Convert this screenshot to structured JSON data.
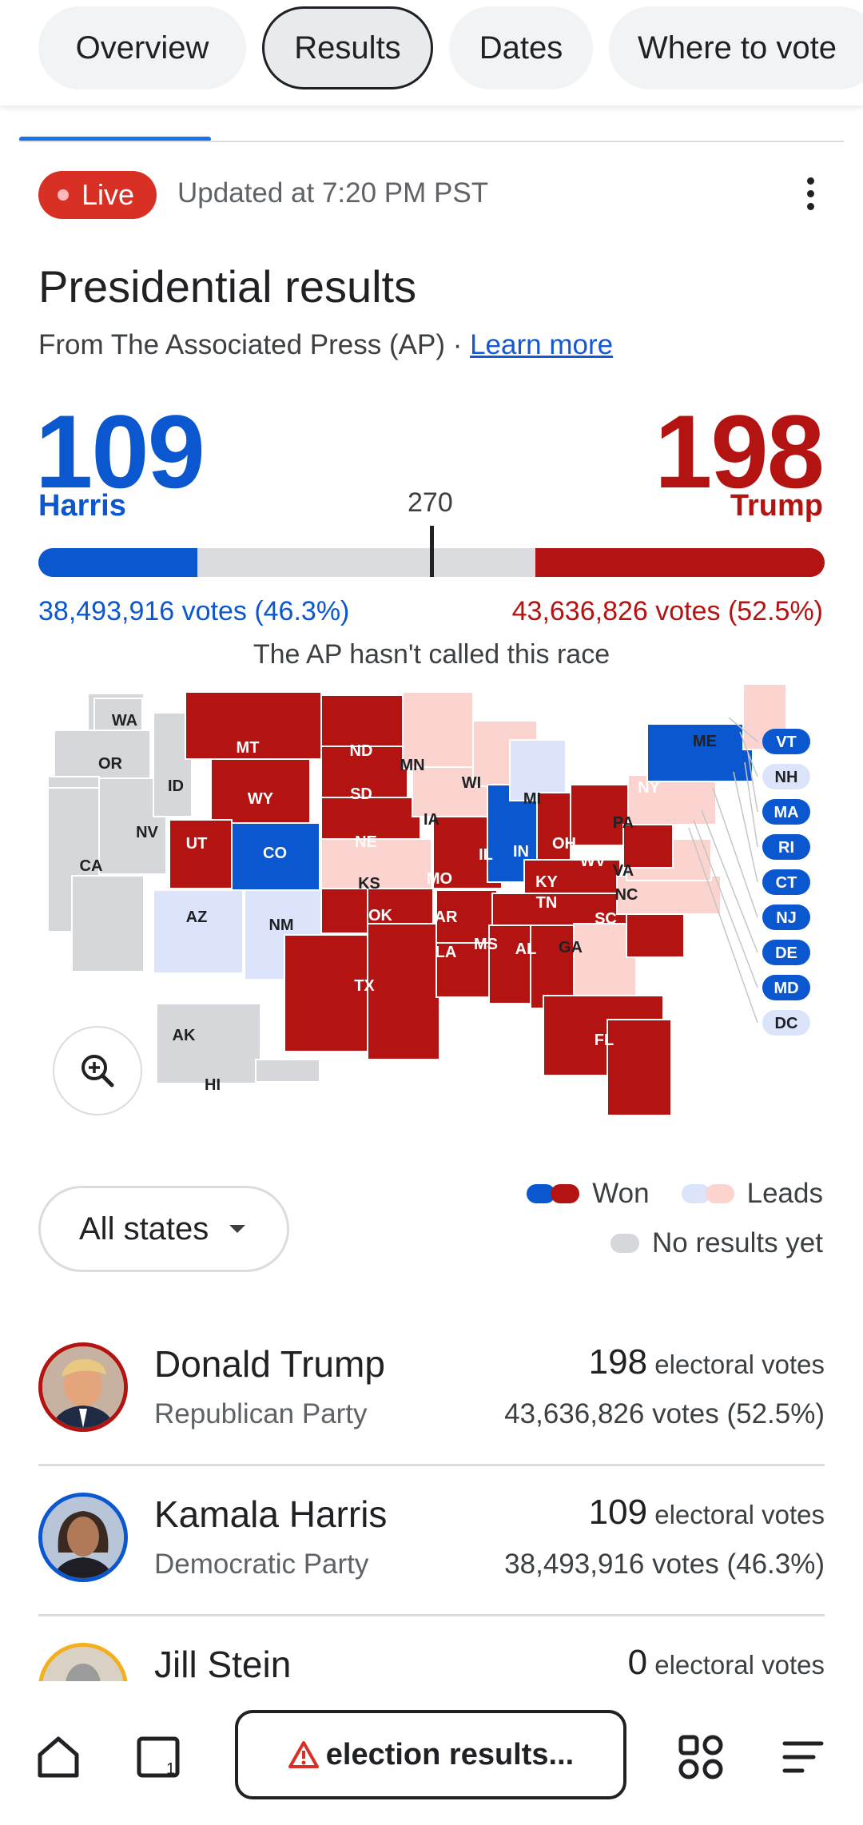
{
  "tabs": [
    {
      "label": "Overview",
      "active": false
    },
    {
      "label": "Results",
      "active": true
    },
    {
      "label": "Dates",
      "active": false
    },
    {
      "label": "Where to vote",
      "active": false
    }
  ],
  "status": {
    "live_label": "Live",
    "updated": "Updated at 7:20 PM PST"
  },
  "header": {
    "title": "Presidential results",
    "source_prefix": "From The Associated Press (AP) · ",
    "learn_more": "Learn more"
  },
  "tally": {
    "left_ev": "109",
    "left_name": "Harris",
    "right_ev": "198",
    "right_name": "Trump",
    "threshold": "270",
    "left_votes": "38,493,916 votes (46.3%)",
    "right_votes": "43,636,826 votes (52.5%)",
    "left_fraction": 0.2025,
    "right_fraction": 0.3679,
    "note": "The AP hasn't called this race"
  },
  "map": {
    "states": [
      {
        "abbr": "WA",
        "status": "none"
      },
      {
        "abbr": "OR",
        "status": "none"
      },
      {
        "abbr": "CA",
        "status": "none"
      },
      {
        "abbr": "NV",
        "status": "none"
      },
      {
        "abbr": "ID",
        "status": "none"
      },
      {
        "abbr": "MT",
        "status": "rep-won"
      },
      {
        "abbr": "WY",
        "status": "rep-won"
      },
      {
        "abbr": "UT",
        "status": "rep-won"
      },
      {
        "abbr": "CO",
        "status": "dem-won"
      },
      {
        "abbr": "AZ",
        "status": "dem-lead"
      },
      {
        "abbr": "NM",
        "status": "dem-lead"
      },
      {
        "abbr": "ND",
        "status": "rep-won"
      },
      {
        "abbr": "SD",
        "status": "rep-won"
      },
      {
        "abbr": "NE",
        "status": "rep-won"
      },
      {
        "abbr": "KS",
        "status": "rep-lead"
      },
      {
        "abbr": "OK",
        "status": "rep-won"
      },
      {
        "abbr": "TX",
        "status": "rep-won"
      },
      {
        "abbr": "MN",
        "status": "rep-lead"
      },
      {
        "abbr": "IA",
        "status": "rep-lead"
      },
      {
        "abbr": "MO",
        "status": "rep-won"
      },
      {
        "abbr": "AR",
        "status": "rep-won"
      },
      {
        "abbr": "LA",
        "status": "rep-won"
      },
      {
        "abbr": "WI",
        "status": "rep-lead"
      },
      {
        "abbr": "IL",
        "status": "dem-won"
      },
      {
        "abbr": "MI",
        "status": "dem-lead"
      },
      {
        "abbr": "IN",
        "status": "rep-won"
      },
      {
        "abbr": "OH",
        "status": "rep-won"
      },
      {
        "abbr": "KY",
        "status": "rep-won"
      },
      {
        "abbr": "TN",
        "status": "rep-won"
      },
      {
        "abbr": "MS",
        "status": "rep-won"
      },
      {
        "abbr": "AL",
        "status": "rep-won"
      },
      {
        "abbr": "GA",
        "status": "rep-lead"
      },
      {
        "abbr": "FL",
        "status": "rep-won"
      },
      {
        "abbr": "SC",
        "status": "rep-won"
      },
      {
        "abbr": "NC",
        "status": "rep-lead"
      },
      {
        "abbr": "VA",
        "status": "rep-lead"
      },
      {
        "abbr": "WV",
        "status": "rep-won"
      },
      {
        "abbr": "PA",
        "status": "rep-lead"
      },
      {
        "abbr": "NY",
        "status": "dem-won"
      },
      {
        "abbr": "ME",
        "status": "rep-lead"
      },
      {
        "abbr": "AK",
        "status": "none"
      },
      {
        "abbr": "HI",
        "status": "none"
      }
    ],
    "side_labels": [
      {
        "abbr": "VT",
        "status": "dem-won"
      },
      {
        "abbr": "NH",
        "status": "dem-lead"
      },
      {
        "abbr": "MA",
        "status": "dem-won"
      },
      {
        "abbr": "RI",
        "status": "dem-won"
      },
      {
        "abbr": "CT",
        "status": "dem-won"
      },
      {
        "abbr": "NJ",
        "status": "dem-won"
      },
      {
        "abbr": "DE",
        "status": "dem-won"
      },
      {
        "abbr": "MD",
        "status": "dem-won"
      },
      {
        "abbr": "DC",
        "status": "dem-lead"
      }
    ]
  },
  "filter": {
    "label": "All states"
  },
  "legend": {
    "won": "Won",
    "leads": "Leads",
    "none": "No results yet"
  },
  "candidates": [
    {
      "name": "Donald Trump",
      "party": "Republican Party",
      "ev": "198",
      "ev_suffix": " electoral votes",
      "votes": "43,636,826 votes (52.5%)"
    },
    {
      "name": "Kamala Harris",
      "party": "Democratic Party",
      "ev": "109",
      "ev_suffix": " electoral votes",
      "votes": "38,493,916 votes (46.3%)"
    },
    {
      "name": "Jill Stein",
      "party": "",
      "ev": "0",
      "ev_suffix": " electoral votes",
      "votes": ""
    }
  ],
  "bottom_bar": {
    "omnibox": "election results..."
  },
  "colors": {
    "dem_won": "#0b57d0",
    "dem_lead": "#dbe4fb",
    "rep_won": "#b31412",
    "rep_lead": "#fbd3cf",
    "none": "#d5d7da"
  }
}
